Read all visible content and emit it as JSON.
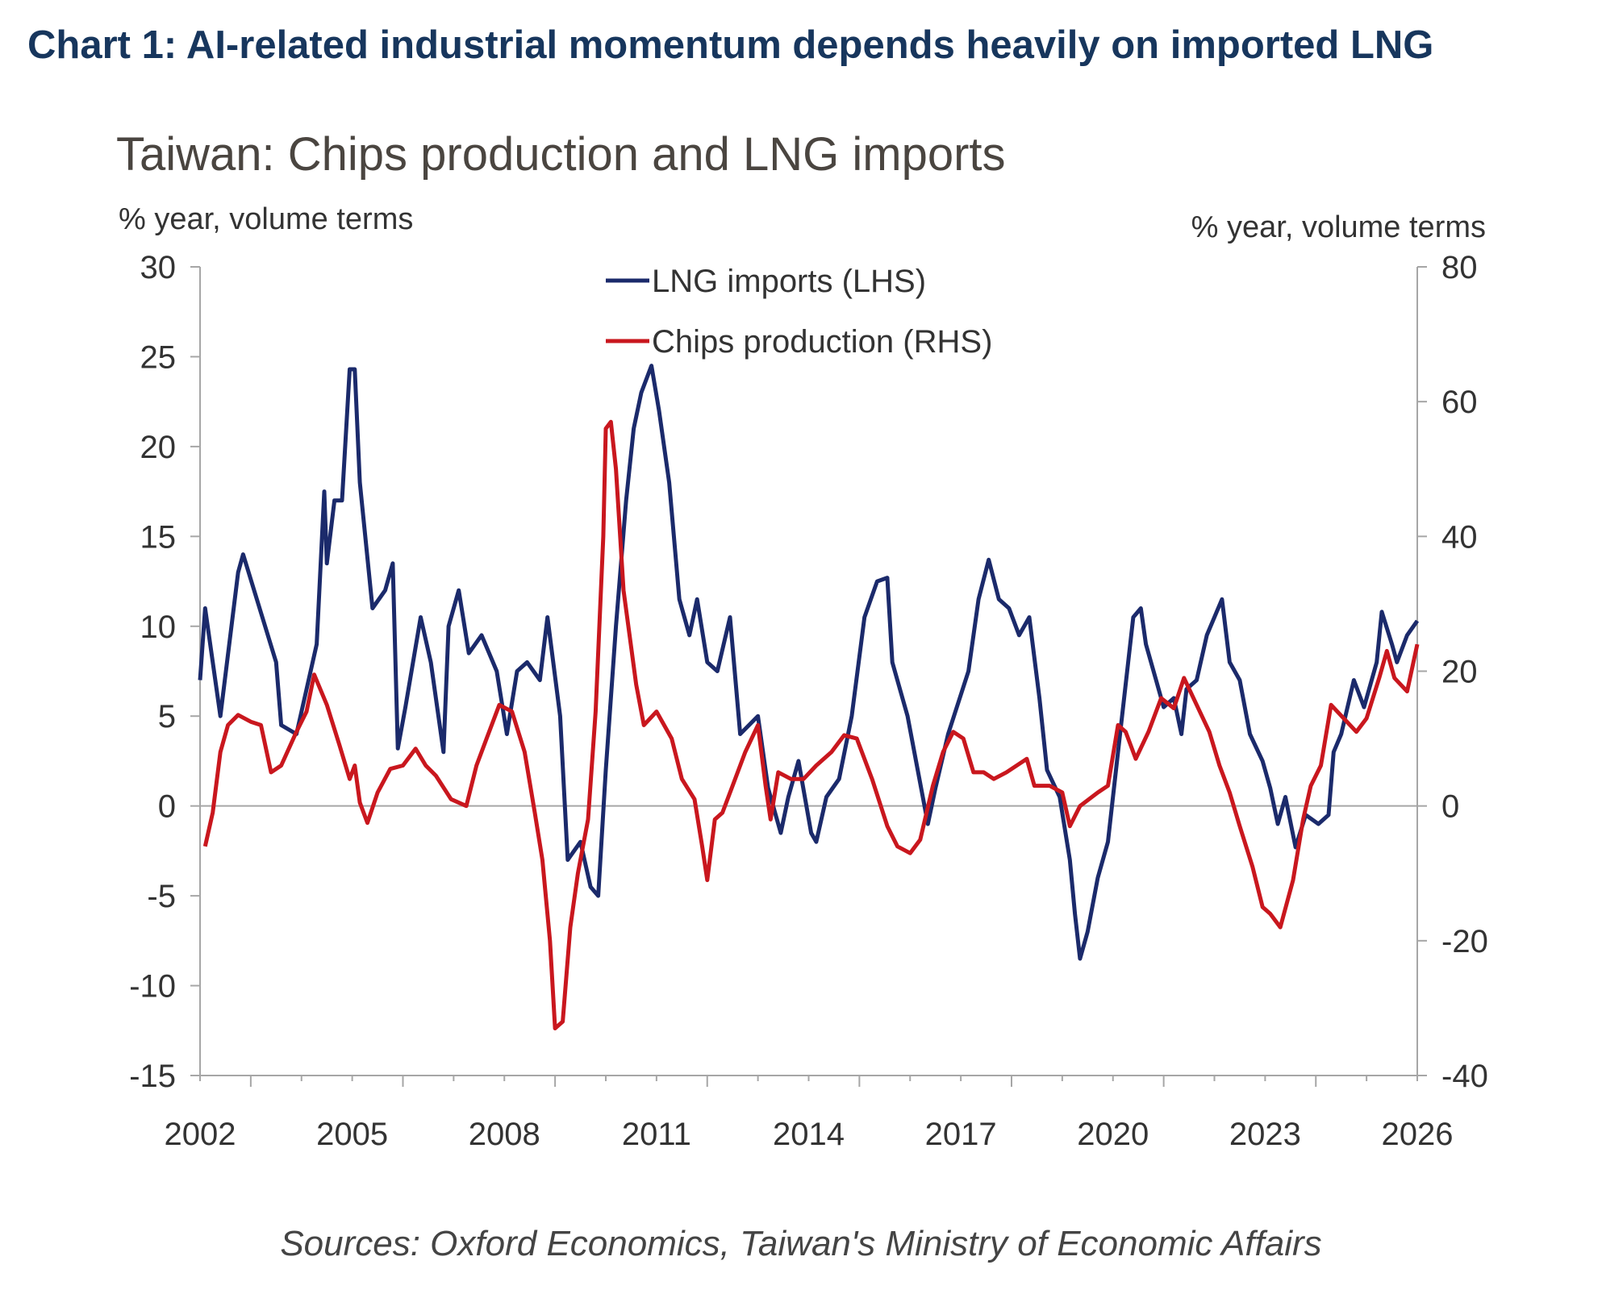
{
  "header": {
    "title": "Chart 1: AI-related industrial momentum depends heavily on imported LNG"
  },
  "footer": {
    "sources": "Sources: Oxford Economics, Taiwan's Ministry of Economic Affairs"
  },
  "colors": {
    "lng": "#1b2a6b",
    "chips": "#c9171e",
    "title": "#17365d"
  },
  "chart_data": {
    "type": "line",
    "title": "Taiwan: Chips production and LNG imports",
    "ylabel_left": "% year, volume terms",
    "ylabel_right": "% year, volume terms",
    "xlim": [
      2002,
      2026
    ],
    "ylim_left": [
      -15,
      30
    ],
    "ylim_right": [
      -40,
      80
    ],
    "xticks": [
      "2002",
      "2005",
      "2008",
      "2011",
      "2014",
      "2017",
      "2020",
      "2023",
      "2026"
    ],
    "yticks_left": [
      "30",
      "25",
      "20",
      "15",
      "10",
      "5",
      "0",
      "-5",
      "-10",
      "-15"
    ],
    "yticks_right": [
      "80",
      "60",
      "40",
      "20",
      "0",
      "-20",
      "-40"
    ],
    "legend_position": "top-center",
    "series": [
      {
        "name": "LNG imports (LHS)",
        "axis": "left",
        "x": [
          2002.0,
          2002.1,
          2002.4,
          2002.75,
          2002.85,
          2003.5,
          2003.6,
          2003.9,
          2004.3,
          2004.45,
          2004.5,
          2004.65,
          2004.8,
          2004.95,
          2005.05,
          2005.15,
          2005.4,
          2005.65,
          2005.8,
          2005.9,
          2006.05,
          2006.35,
          2006.55,
          2006.8,
          2006.9,
          2007.1,
          2007.3,
          2007.55,
          2007.85,
          2008.05,
          2008.25,
          2008.45,
          2008.7,
          2008.85,
          2009.1,
          2009.25,
          2009.5,
          2009.7,
          2009.85,
          2010.0,
          2010.2,
          2010.4,
          2010.55,
          2010.7,
          2010.9,
          2011.05,
          2011.25,
          2011.45,
          2011.65,
          2011.8,
          2012.0,
          2012.2,
          2012.45,
          2012.65,
          2013.0,
          2013.2,
          2013.45,
          2013.6,
          2013.8,
          2014.05,
          2014.15,
          2014.35,
          2014.6,
          2014.85,
          2015.1,
          2015.35,
          2015.55,
          2015.65,
          2015.95,
          2016.15,
          2016.35,
          2016.5,
          2016.75,
          2017.15,
          2017.35,
          2017.55,
          2017.75,
          2017.95,
          2018.15,
          2018.35,
          2018.55,
          2018.7,
          2018.95,
          2019.15,
          2019.25,
          2019.35,
          2019.5,
          2019.7,
          2019.9,
          2020.1,
          2020.3,
          2020.4,
          2020.55,
          2020.65,
          2020.85,
          2021.0,
          2021.2,
          2021.35,
          2021.45,
          2021.65,
          2021.85,
          2022.15,
          2022.3,
          2022.5,
          2022.7,
          2022.95,
          2023.1,
          2023.25,
          2023.4,
          2023.6,
          2023.8,
          2024.05,
          2024.25,
          2024.35,
          2024.5,
          2024.75,
          2024.95,
          2025.2,
          2025.3,
          2025.5,
          2025.6,
          2025.8,
          2026.0
        ],
        "values": [
          7,
          11,
          5,
          13,
          14,
          8,
          4.5,
          4,
          9,
          17.5,
          13.5,
          17,
          17,
          24.3,
          24.3,
          18,
          11,
          12,
          13.5,
          3.2,
          5.5,
          10.5,
          8,
          3,
          10,
          12,
          8.5,
          9.5,
          7.5,
          4,
          7.5,
          8,
          7,
          10.5,
          5,
          -3,
          -2,
          -4.5,
          -5,
          2,
          10,
          17,
          21,
          23,
          24.5,
          22,
          18,
          11.5,
          9.5,
          11.5,
          8,
          7.5,
          10.5,
          4,
          5,
          1,
          -1.5,
          0.5,
          2.5,
          -1.5,
          -2,
          0.5,
          1.5,
          5,
          10.5,
          12.5,
          12.7,
          8,
          5,
          2,
          -1,
          1,
          4,
          7.5,
          11.5,
          13.7,
          11.5,
          11,
          9.5,
          10.5,
          6,
          2,
          0.5,
          -3,
          -6,
          -8.5,
          -7,
          -4,
          -2,
          3,
          8,
          10.5,
          11,
          9,
          7,
          5.5,
          6,
          4,
          6.5,
          7,
          9.5,
          11.5,
          8,
          7,
          4,
          2.5,
          1,
          -1,
          0.5,
          -2.3,
          -0.5,
          -1,
          -0.5,
          3,
          4,
          7,
          5.5,
          8,
          10.8,
          9,
          8,
          9.5,
          10.3
        ]
      },
      {
        "name": "Chips production (RHS)",
        "axis": "right",
        "x": [
          2002.1,
          2002.25,
          2002.4,
          2002.55,
          2002.75,
          2003.0,
          2003.2,
          2003.4,
          2003.6,
          2003.9,
          2004.1,
          2004.25,
          2004.5,
          2004.75,
          2004.95,
          2005.05,
          2005.15,
          2005.3,
          2005.5,
          2005.75,
          2006.0,
          2006.25,
          2006.45,
          2006.65,
          2006.95,
          2007.25,
          2007.45,
          2007.65,
          2007.9,
          2008.15,
          2008.4,
          2008.6,
          2008.75,
          2008.9,
          2009.0,
          2009.15,
          2009.3,
          2009.45,
          2009.65,
          2009.8,
          2009.95,
          2010.0,
          2010.1,
          2010.2,
          2010.35,
          2010.6,
          2010.75,
          2011.0,
          2011.3,
          2011.5,
          2011.75,
          2011.9,
          2012.0,
          2012.15,
          2012.3,
          2012.5,
          2012.75,
          2013.0,
          2013.15,
          2013.25,
          2013.4,
          2013.65,
          2013.9,
          2014.15,
          2014.45,
          2014.7,
          2014.95,
          2015.25,
          2015.55,
          2015.75,
          2016.0,
          2016.2,
          2016.45,
          2016.65,
          2016.85,
          2017.05,
          2017.25,
          2017.45,
          2017.65,
          2017.9,
          2018.3,
          2018.45,
          2018.75,
          2019.0,
          2019.15,
          2019.35,
          2019.7,
          2019.9,
          2020.1,
          2020.25,
          2020.45,
          2020.7,
          2020.95,
          2021.2,
          2021.4,
          2021.65,
          2021.9,
          2022.1,
          2022.3,
          2022.5,
          2022.75,
          2022.95,
          2023.1,
          2023.3,
          2023.55,
          2023.75,
          2023.9,
          2024.1,
          2024.3,
          2024.55,
          2024.8,
          2025.0,
          2025.25,
          2025.4,
          2025.55,
          2025.8,
          2026.0
        ],
        "values": [
          -6,
          -1,
          8,
          12,
          13.5,
          12.5,
          12,
          5,
          6,
          11,
          14,
          19.5,
          15,
          9,
          4,
          6,
          0.5,
          -2.5,
          2,
          5.5,
          6,
          8.5,
          6,
          4.5,
          1,
          0,
          6,
          10,
          15,
          14,
          8,
          -1,
          -8,
          -20,
          -33,
          -32,
          -18,
          -10,
          -2,
          14,
          40,
          56,
          57,
          50,
          32,
          18,
          12,
          14,
          10,
          4,
          1,
          -6,
          -11,
          -2,
          -1,
          3,
          8,
          12,
          3,
          -2,
          5,
          4,
          4,
          6,
          8,
          10.5,
          10,
          4,
          -3,
          -6,
          -7,
          -5,
          3,
          8,
          11,
          10,
          5,
          5,
          4,
          5,
          7,
          3,
          3,
          2,
          -3,
          0,
          2,
          3,
          12,
          11,
          7,
          11,
          16,
          14.5,
          19,
          15,
          11,
          6,
          2,
          -3,
          -9,
          -15,
          -16,
          -18,
          -11,
          -2,
          3,
          6,
          15,
          13,
          11,
          13,
          19,
          23,
          19,
          17,
          24
        ]
      }
    ]
  }
}
